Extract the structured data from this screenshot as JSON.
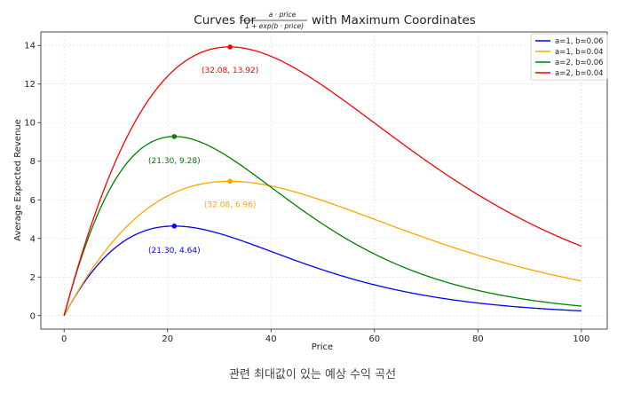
{
  "chart_data": {
    "type": "line",
    "title_prefix": "Curves for",
    "title_numerator": "a · price",
    "title_denominator": "1 + exp(b · price)",
    "title_suffix": "with Maximum Coordinates",
    "xlabel": "Price",
    "ylabel": "Average Expected Revenue",
    "xlim": [
      -4.5,
      105
    ],
    "ylim": [
      -0.7,
      14.7
    ],
    "xticks": [
      0,
      20,
      40,
      60,
      80,
      100
    ],
    "yticks": [
      0,
      2,
      4,
      6,
      8,
      10,
      12,
      14
    ],
    "grid": true,
    "legend_position": "top-right",
    "function": "a*price/(1+exp(b*price))",
    "x_range": [
      0,
      100
    ],
    "series": [
      {
        "name": "a=1, b=0.06",
        "a": 1,
        "b": 0.06,
        "color": "#0000ff",
        "max_point": {
          "x": 21.3,
          "y": 4.64
        },
        "max_label": "(21.30, 4.64)"
      },
      {
        "name": "a=1, b=0.04",
        "a": 1,
        "b": 0.04,
        "color": "#ffa500",
        "max_point": {
          "x": 32.08,
          "y": 6.96
        },
        "max_label": "(32.08, 6.96)"
      },
      {
        "name": "a=2, b=0.06",
        "a": 2,
        "b": 0.06,
        "color": "#008000",
        "max_point": {
          "x": 21.3,
          "y": 9.28
        },
        "max_label": "(21.30, 9.28)"
      },
      {
        "name": "a=2, b=0.04",
        "a": 2,
        "b": 0.04,
        "color": "#ff0000",
        "max_point": {
          "x": 32.08,
          "y": 13.92
        },
        "max_label": "(32.08, 13.92)"
      }
    ]
  },
  "caption": "관련 최대값이 있는 예상 수익 곡선"
}
